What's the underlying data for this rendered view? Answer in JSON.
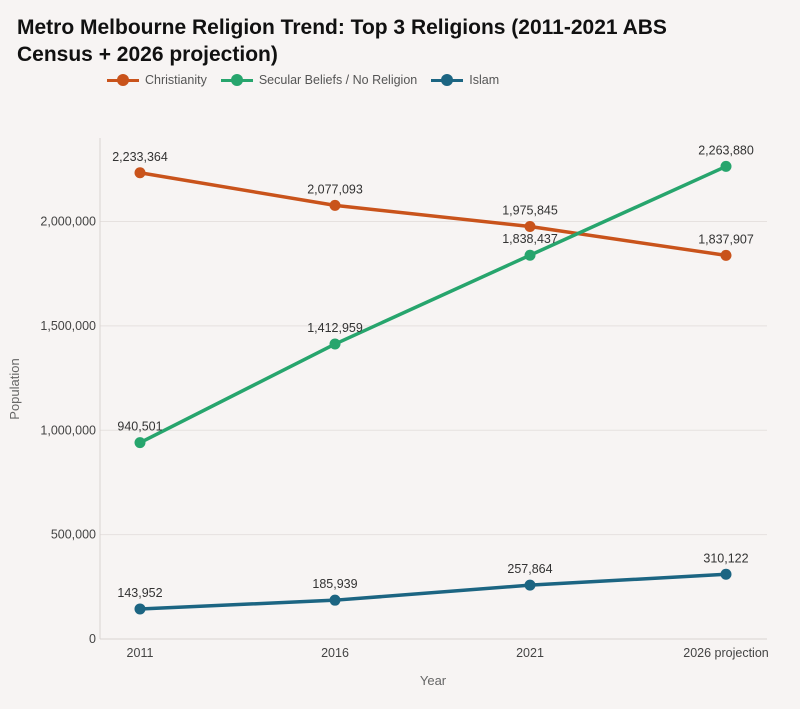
{
  "title": "Metro Melbourne Religion Trend: Top 3 Religions (2011-2021 ABS Census + 2026 projection)",
  "chart_data": {
    "type": "line",
    "title": "Metro Melbourne Religion Trend: Top 3 Religions (2011-2021 ABS Census + 2026 projection)",
    "xlabel": "Year",
    "ylabel": "Population",
    "categories": [
      "2011",
      "2016",
      "2021",
      "2026 projection"
    ],
    "ylim": [
      0,
      2400000
    ],
    "yticks": [
      0,
      500000,
      1000000,
      1500000,
      2000000
    ],
    "ytick_labels": [
      "0",
      "500,000",
      "1,000,000",
      "1,500,000",
      "2,000,000"
    ],
    "grid": true,
    "legend_position": "top-left",
    "series": [
      {
        "name": "Christianity",
        "color": "#c9531b",
        "values": [
          2233364,
          2077093,
          1975845,
          1837907
        ],
        "labels": [
          "2,233,364",
          "2,077,093",
          "1,975,845",
          "1,837,907"
        ]
      },
      {
        "name": "Secular Beliefs / No Religion",
        "color": "#27a56d",
        "values": [
          940501,
          1412959,
          1838437,
          2263880
        ],
        "labels": [
          "940,501",
          "1,412,959",
          "1,838,437",
          "2,263,880"
        ]
      },
      {
        "name": "Islam",
        "color": "#1c6582",
        "values": [
          143952,
          185939,
          257864,
          310122
        ],
        "labels": [
          "143,952",
          "185,939",
          "257,864",
          "310,122"
        ]
      }
    ]
  }
}
